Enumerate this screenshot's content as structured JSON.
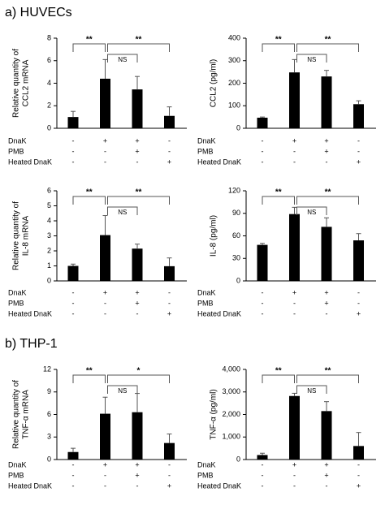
{
  "sections": [
    "a)  HUVECs",
    "b)  THP-1"
  ],
  "chart_data": [
    {
      "type": "bar",
      "ylabel": [
        "Relative quantity of",
        "CCL2 mRNA"
      ],
      "categories": [
        null,
        null,
        null,
        null
      ],
      "values": [
        1.0,
        4.4,
        3.45,
        1.1
      ],
      "errors": [
        0.5,
        1.7,
        1.15,
        0.8
      ],
      "color": "#000000",
      "ylim": [
        0,
        8
      ],
      "yticks": [
        0,
        2,
        4,
        6,
        8
      ],
      "annotations": [
        "**",
        "NS",
        "**"
      ],
      "treatments": [
        {
          "name": "DnaK",
          "signs": [
            "-",
            "+",
            "+",
            "-"
          ]
        },
        {
          "name": "PMB",
          "signs": [
            "-",
            "-",
            "+",
            "-"
          ]
        },
        {
          "name": "Heated DnaK",
          "signs": [
            "-",
            "-",
            "-",
            "+"
          ]
        }
      ]
    },
    {
      "type": "bar",
      "ylabel": [
        "CCL2 (pg/ml)"
      ],
      "categories": [
        null,
        null,
        null,
        null
      ],
      "values": [
        47,
        248,
        230,
        107
      ],
      "errors": [
        3,
        57,
        27,
        15
      ],
      "color": "#000000",
      "ylim": [
        0,
        400
      ],
      "yticks": [
        0,
        100,
        200,
        300,
        400
      ],
      "annotations": [
        "**",
        "NS",
        "**"
      ],
      "treatments": [
        {
          "name": "DnaK",
          "signs": [
            "-",
            "+",
            "+",
            "-"
          ]
        },
        {
          "name": "PMB",
          "signs": [
            "-",
            "-",
            "+",
            "-"
          ]
        },
        {
          "name": "Heated DnaK",
          "signs": [
            "-",
            "-",
            "-",
            "+"
          ]
        }
      ]
    },
    {
      "type": "bar",
      "ylabel": [
        "Relative quantity of",
        "IL-8 mRNA"
      ],
      "categories": [
        null,
        null,
        null,
        null
      ],
      "values": [
        1.0,
        3.05,
        2.15,
        0.98
      ],
      "errors": [
        0.12,
        1.3,
        0.3,
        0.55
      ],
      "color": "#000000",
      "ylim": [
        0,
        6
      ],
      "yticks": [
        0,
        1,
        2,
        3,
        4,
        5,
        6
      ],
      "annotations": [
        "**",
        "NS",
        "**"
      ],
      "treatments": [
        {
          "name": "DnaK",
          "signs": [
            "-",
            "+",
            "+",
            "-"
          ]
        },
        {
          "name": "PMB",
          "signs": [
            "-",
            "-",
            "+",
            "-"
          ]
        },
        {
          "name": "Heated DnaK",
          "signs": [
            "-",
            "-",
            "-",
            "+"
          ]
        }
      ]
    },
    {
      "type": "bar",
      "ylabel": [
        "IL-8 (pg/ml)"
      ],
      "categories": [
        null,
        null,
        null,
        null
      ],
      "values": [
        48,
        89,
        72,
        54
      ],
      "errors": [
        2,
        9,
        12,
        9
      ],
      "color": "#000000",
      "ylim": [
        0,
        120
      ],
      "yticks": [
        0,
        30,
        60,
        90,
        120
      ],
      "annotations": [
        "**",
        "NS",
        "**"
      ],
      "treatments": [
        {
          "name": "DnaK",
          "signs": [
            "-",
            "+",
            "+",
            "-"
          ]
        },
        {
          "name": "PMB",
          "signs": [
            "-",
            "-",
            "+",
            "-"
          ]
        },
        {
          "name": "Heated DnaK",
          "signs": [
            "-",
            "-",
            "-",
            "+"
          ]
        }
      ]
    },
    {
      "type": "bar",
      "ylabel": [
        "Relative quantity of",
        "TNF-α mRNA"
      ],
      "categories": [
        null,
        null,
        null,
        null
      ],
      "values": [
        1.0,
        6.1,
        6.3,
        2.2
      ],
      "errors": [
        0.5,
        2.2,
        2.5,
        1.2
      ],
      "color": "#000000",
      "ylim": [
        0,
        12
      ],
      "yticks": [
        0,
        3,
        6,
        9,
        12
      ],
      "annotations": [
        "**",
        "NS",
        "*"
      ],
      "treatments": [
        {
          "name": "DnaK",
          "signs": [
            "-",
            "+",
            "+",
            "-"
          ]
        },
        {
          "name": "PMB",
          "signs": [
            "-",
            "-",
            "+",
            "-"
          ]
        },
        {
          "name": "Heated DnaK",
          "signs": [
            "-",
            "-",
            "-",
            "+"
          ]
        }
      ]
    },
    {
      "type": "bar",
      "ylabel": [
        "TNF-α (pg/ml)"
      ],
      "categories": [
        null,
        null,
        null,
        null
      ],
      "values": [
        200,
        2820,
        2150,
        600
      ],
      "errors": [
        80,
        120,
        420,
        600
      ],
      "color": "#000000",
      "ylim": [
        0,
        4000
      ],
      "yticks": [
        0,
        {
          "value": 1000,
          "label": "1,000"
        },
        {
          "value": 2000,
          "label": "2,000"
        },
        {
          "value": 3000,
          "label": "3,000"
        },
        {
          "value": 4000,
          "label": "4,000"
        }
      ],
      "annotations": [
        "**",
        "NS",
        "**"
      ],
      "treatments": [
        {
          "name": "DnaK",
          "signs": [
            "-",
            "+",
            "+",
            "-"
          ]
        },
        {
          "name": "PMB",
          "signs": [
            "-",
            "-",
            "+",
            "-"
          ]
        },
        {
          "name": "Heated DnaK",
          "signs": [
            "-",
            "-",
            "-",
            "+"
          ]
        }
      ]
    }
  ]
}
